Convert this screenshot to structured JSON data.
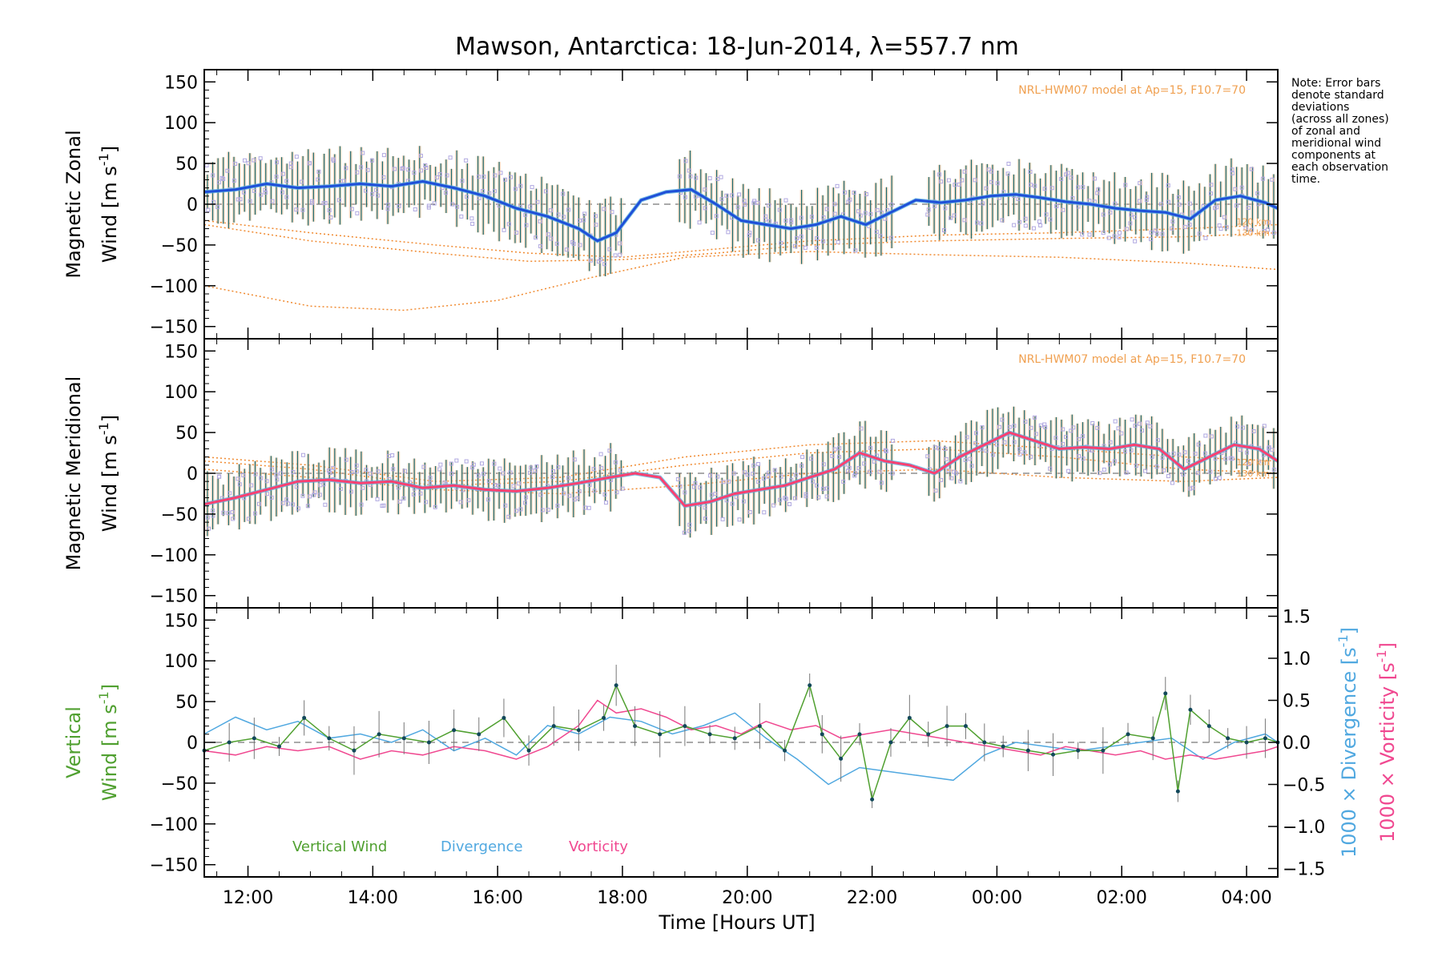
{
  "title": "Mawson, Antarctica: 18-Jun-2014, λ=557.7 nm",
  "note_lines": [
    "Note: Error bars",
    "denote standard",
    "deviations",
    "(across all zones)",
    "of zonal and",
    "meridional wind",
    "components at",
    "each observation",
    "time."
  ],
  "model_label": "NRL-HWM07 model at Ap=15, F10.7=70",
  "model_altitudes": [
    "120 km",
    "130 km"
  ],
  "colors": {
    "zonal": "#1f4fd8",
    "zonal_light": "#5ab0e0",
    "meridional": "#ff4070",
    "errbar": "#1a6a70",
    "scatter": "#b0a8e0",
    "model": "#f08a30",
    "spread": "#f8c8a0",
    "vertical": "#50a030",
    "divergence": "#50a8e0",
    "vorticity": "#f04890"
  },
  "xaxis": {
    "label": "Time [Hours UT]",
    "ticks": [
      "12:00",
      "14:00",
      "16:00",
      "18:00",
      "20:00",
      "22:00",
      "00:00",
      "02:00",
      "04:00"
    ],
    "tick_hours": [
      12,
      14,
      16,
      18,
      20,
      22,
      24,
      26,
      28
    ],
    "range_hours": [
      11.3,
      28.5
    ]
  },
  "panels": [
    {
      "key": "zonal",
      "ylabel_line1": "Magnetic Zonal",
      "ylabel_line2": "Wind [m s",
      "ylabel_sup": "-1",
      "ylabel_close": "]",
      "ylim": [
        -165,
        165
      ],
      "yticks": [
        150,
        100,
        50,
        0,
        -50,
        -100,
        -150
      ]
    },
    {
      "key": "meridional",
      "ylabel_line1": "Magnetic Meridional",
      "ylabel_line2": "Wind [m s",
      "ylabel_sup": "-1",
      "ylabel_close": "]",
      "ylim": [
        -165,
        165
      ],
      "yticks": [
        150,
        100,
        50,
        0,
        -50,
        -100,
        -150
      ]
    },
    {
      "key": "vertical",
      "ylabel_line1": "Vertical",
      "ylabel_line2": "Wind [m s",
      "ylabel_sup": "-1",
      "ylabel_close": "]",
      "ylim": [
        -165,
        165
      ],
      "yticks": [
        150,
        100,
        50,
        0,
        -50,
        -100,
        -150
      ],
      "right_ylim": [
        -1.6,
        1.6
      ],
      "right_yticks": [
        "1.5",
        "1.0",
        "0.5",
        "0.0",
        "−0.5",
        "−1.0",
        "−1.5"
      ],
      "right_ytick_values": [
        1.5,
        1.0,
        0.5,
        0.0,
        -0.5,
        -1.0,
        -1.5
      ],
      "right_label_div": "1000 × Divergence [s",
      "right_label_vor": "1000 × Vorticity [s",
      "right_label_sup": "-1",
      "right_label_close": "]"
    }
  ],
  "legend": {
    "vertical": "Vertical Wind",
    "divergence": "Divergence",
    "vorticity": "Vorticity"
  },
  "chart_data": {
    "type": "line",
    "x_units": "hours UT (values above 24 are the next day)",
    "zonal": {
      "x": [
        11.3,
        11.8,
        12.3,
        12.8,
        13.3,
        13.8,
        14.3,
        14.8,
        15.3,
        15.8,
        16.3,
        16.8,
        17.3,
        17.6,
        17.9,
        18.3,
        18.7,
        19.1,
        19.5,
        19.9,
        20.3,
        20.7,
        21.1,
        21.5,
        21.9,
        22.3,
        22.7,
        23.1,
        23.5,
        23.9,
        24.3,
        24.7,
        25.1,
        25.5,
        25.9,
        26.3,
        26.7,
        27.1,
        27.5,
        27.9,
        28.3,
        28.5
      ],
      "y": [
        15,
        18,
        25,
        20,
        22,
        25,
        22,
        28,
        20,
        10,
        -5,
        -15,
        -30,
        -45,
        -35,
        5,
        15,
        18,
        0,
        -20,
        -25,
        -30,
        -25,
        -15,
        -25,
        -10,
        5,
        2,
        5,
        10,
        12,
        8,
        3,
        0,
        -5,
        -8,
        -10,
        -18,
        5,
        10,
        2,
        -5
      ],
      "errbar": 35
    },
    "meridional": {
      "x": [
        11.3,
        11.8,
        12.3,
        12.8,
        13.3,
        13.8,
        14.3,
        14.8,
        15.3,
        15.8,
        16.3,
        16.8,
        17.3,
        17.8,
        18.2,
        18.6,
        19.0,
        19.4,
        19.8,
        20.2,
        20.6,
        21.0,
        21.4,
        21.8,
        22.2,
        22.6,
        23.0,
        23.4,
        23.8,
        24.2,
        24.6,
        25.0,
        25.4,
        25.8,
        26.2,
        26.6,
        27.0,
        27.4,
        27.8,
        28.2,
        28.5
      ],
      "y": [
        -38,
        -30,
        -20,
        -10,
        -8,
        -12,
        -10,
        -18,
        -15,
        -20,
        -22,
        -18,
        -12,
        -5,
        0,
        -5,
        -40,
        -35,
        -25,
        -20,
        -15,
        -5,
        5,
        25,
        15,
        10,
        0,
        20,
        35,
        50,
        40,
        30,
        32,
        30,
        35,
        30,
        5,
        20,
        35,
        30,
        15
      ],
      "errbar": 30
    },
    "model_curves": {
      "zonal": [
        {
          "x": [
            11.3,
            13,
            15,
            16.5,
            18,
            19.5,
            21,
            23,
            25,
            27,
            28.5
          ],
          "y": [
            -20,
            -35,
            -50,
            -60,
            -65,
            -55,
            -45,
            -38,
            -35,
            -30,
            -25
          ]
        },
        {
          "x": [
            11.3,
            13,
            15,
            16.5,
            18,
            19.5,
            21,
            23,
            25,
            27,
            28.5
          ],
          "y": [
            -25,
            -45,
            -60,
            -70,
            -68,
            -60,
            -50,
            -45,
            -42,
            -40,
            -35
          ]
        },
        {
          "x": [
            11.3,
            13,
            14.5,
            16,
            17.5,
            19,
            21,
            23,
            25,
            27,
            28.5
          ],
          "y": [
            -100,
            -125,
            -130,
            -118,
            -90,
            -65,
            -58,
            -62,
            -65,
            -72,
            -80
          ]
        }
      ],
      "meridional": [
        {
          "x": [
            11.3,
            13,
            15,
            17,
            19,
            21,
            23,
            25,
            27,
            28.5
          ],
          "y": [
            20,
            10,
            -10,
            -5,
            20,
            35,
            40,
            30,
            20,
            15
          ]
        },
        {
          "x": [
            11.3,
            13,
            15,
            17,
            19,
            21,
            23,
            25,
            27,
            28.5
          ],
          "y": [
            15,
            5,
            -15,
            -10,
            10,
            25,
            30,
            20,
            5,
            0
          ]
        },
        {
          "x": [
            11.3,
            13,
            15,
            17,
            19,
            21,
            23,
            25,
            27,
            28.5
          ],
          "y": [
            5,
            -5,
            -20,
            -25,
            -15,
            0,
            5,
            -5,
            -10,
            -5
          ]
        }
      ]
    },
    "vertical": {
      "x": [
        11.3,
        11.7,
        12.1,
        12.5,
        12.9,
        13.3,
        13.7,
        14.1,
        14.5,
        14.9,
        15.3,
        15.7,
        16.1,
        16.5,
        16.9,
        17.3,
        17.7,
        17.9,
        18.2,
        18.6,
        19.0,
        19.4,
        19.8,
        20.2,
        20.6,
        21.0,
        21.2,
        21.5,
        21.8,
        22.0,
        22.3,
        22.6,
        22.9,
        23.2,
        23.5,
        23.8,
        24.1,
        24.5,
        24.9,
        25.3,
        25.7,
        26.1,
        26.5,
        26.7,
        26.9,
        27.1,
        27.4,
        27.7,
        28.0,
        28.3,
        28.5
      ],
      "y": [
        -10,
        0,
        5,
        -5,
        30,
        5,
        -10,
        10,
        5,
        0,
        15,
        10,
        30,
        -10,
        20,
        15,
        30,
        70,
        20,
        10,
        20,
        10,
        5,
        20,
        -10,
        70,
        10,
        -20,
        10,
        -70,
        0,
        30,
        10,
        20,
        20,
        0,
        -5,
        -10,
        -15,
        -10,
        -10,
        10,
        5,
        60,
        -60,
        40,
        20,
        5,
        0,
        5,
        0
      ],
      "errbar": 20
    },
    "divergence": {
      "x": [
        11.3,
        11.8,
        12.3,
        12.8,
        13.3,
        13.8,
        14.3,
        14.8,
        15.3,
        15.8,
        16.3,
        16.8,
        17.3,
        17.8,
        18.3,
        18.8,
        19.3,
        19.8,
        20.3,
        20.8,
        21.3,
        21.8,
        22.3,
        22.8,
        23.3,
        23.8,
        24.3,
        24.8,
        25.3,
        25.8,
        26.3,
        26.8,
        27.3,
        27.8,
        28.3,
        28.5
      ],
      "y": [
        0.1,
        0.3,
        0.15,
        0.25,
        0.05,
        0.1,
        0.0,
        0.15,
        -0.1,
        0.05,
        -0.15,
        0.2,
        0.1,
        0.3,
        0.25,
        0.1,
        0.2,
        0.35,
        0.05,
        -0.2,
        -0.5,
        -0.3,
        -0.35,
        -0.4,
        -0.45,
        -0.15,
        0.0,
        -0.05,
        -0.1,
        -0.05,
        0.0,
        0.05,
        -0.2,
        0.0,
        0.1,
        0.0
      ]
    },
    "vorticity": {
      "x": [
        11.3,
        11.8,
        12.3,
        12.8,
        13.3,
        13.8,
        14.3,
        14.8,
        15.3,
        15.8,
        16.3,
        16.8,
        17.3,
        17.6,
        17.9,
        18.3,
        18.7,
        19.1,
        19.5,
        19.9,
        20.3,
        20.7,
        21.1,
        21.5,
        21.9,
        22.3,
        22.7,
        23.1,
        23.5,
        23.9,
        24.3,
        24.7,
        25.1,
        25.5,
        25.9,
        26.3,
        26.7,
        27.1,
        27.5,
        27.9,
        28.3,
        28.5
      ],
      "y": [
        -0.1,
        -0.15,
        -0.05,
        -0.1,
        -0.05,
        -0.2,
        -0.1,
        -0.15,
        -0.05,
        -0.1,
        -0.2,
        -0.05,
        0.2,
        0.5,
        0.35,
        0.4,
        0.3,
        0.15,
        0.2,
        0.1,
        0.25,
        0.15,
        0.2,
        0.05,
        0.1,
        0.15,
        0.1,
        0.05,
        0.0,
        -0.05,
        -0.1,
        -0.15,
        -0.05,
        -0.1,
        -0.15,
        -0.1,
        -0.2,
        -0.15,
        -0.2,
        -0.15,
        -0.1,
        -0.05
      ]
    }
  }
}
